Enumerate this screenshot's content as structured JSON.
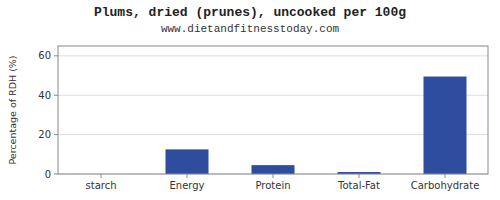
{
  "chart_data": {
    "type": "bar",
    "title": "Plums, dried (prunes), uncooked per 100g",
    "subtitle": "www.dietandfitnesstoday.com",
    "categories": [
      "starch",
      "Energy",
      "Protein",
      "Total-Fat",
      "Carbohydrate"
    ],
    "values": [
      0,
      12.5,
      4.5,
      1.0,
      49.5
    ],
    "color": "#2e4d9e",
    "ylabel": "Percentage of RDH (%)",
    "ylim": [
      0,
      65
    ],
    "yticks": [
      0,
      20,
      40,
      60
    ],
    "grid": true
  }
}
